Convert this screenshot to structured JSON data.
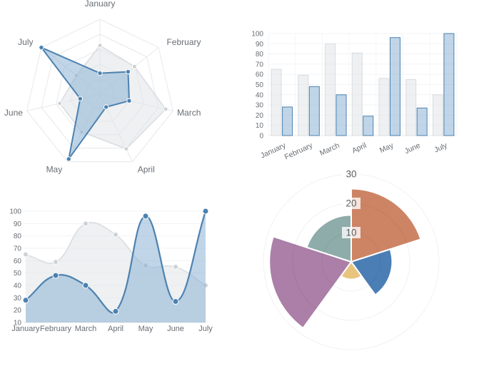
{
  "palette": {
    "blue_stroke": "#4d82b0",
    "blue_fill": "rgba(140,178,212,0.55)",
    "gray_stroke": "#d9dce0",
    "gray_fill": "rgba(224,227,231,0.55)",
    "gray_point": "#ced2d7",
    "grid_line": "#f2f3f5",
    "axis_line": "#e7e8eb",
    "tick_text": "#696e74",
    "polar_ring": "rgba(0,0,0,0.055)",
    "polar_tick_text": "#5a5e64",
    "label_backdrop": "rgba(255,255,255,0.78)",
    "point_border": "#ffffff",
    "polar_colors": [
      "#cd8465",
      "#4a7eb5",
      "#e8c47e",
      "#ab7fa7",
      "#8dacaa"
    ]
  },
  "chart_data": [
    {
      "id": "radar",
      "type": "radar",
      "categories": [
        "January",
        "February",
        "March",
        "April",
        "May",
        "June",
        "July"
      ],
      "series": [
        {
          "name": "gray",
          "values": [
            65,
            59,
            90,
            81,
            56,
            55,
            40
          ]
        },
        {
          "name": "blue",
          "values": [
            28,
            48,
            40,
            19,
            96,
            27,
            100
          ]
        }
      ],
      "rmax": 100,
      "ring_count": 5,
      "grid": true,
      "legend": "none"
    },
    {
      "id": "bar",
      "type": "bar",
      "categories": [
        "January",
        "February",
        "March",
        "April",
        "May",
        "June",
        "July"
      ],
      "series": [
        {
          "name": "gray",
          "values": [
            65,
            59,
            90,
            81,
            56,
            55,
            40
          ]
        },
        {
          "name": "blue",
          "values": [
            28,
            48,
            40,
            19,
            96,
            27,
            100
          ]
        }
      ],
      "ylim": [
        0,
        100
      ],
      "ytick_step": 10,
      "label_rotation": -25,
      "grid": true,
      "legend": "none"
    },
    {
      "id": "line",
      "type": "line",
      "categories": [
        "January",
        "February",
        "March",
        "April",
        "May",
        "June",
        "July"
      ],
      "series": [
        {
          "name": "gray",
          "values": [
            65,
            59,
            90,
            81,
            56,
            55,
            40
          ]
        },
        {
          "name": "blue",
          "values": [
            28,
            48,
            40,
            19,
            96,
            27,
            100
          ]
        }
      ],
      "ylim": [
        10,
        100
      ],
      "ytick_step": 10,
      "smooth": true,
      "fill": true,
      "grid": true,
      "legend": "none"
    },
    {
      "id": "polar",
      "type": "polarArea",
      "values": [
        25,
        14,
        6,
        28,
        16
      ],
      "segment_names": [
        "orange",
        "blue",
        "yellow",
        "purple",
        "teal"
      ],
      "rticks": [
        10,
        20,
        30
      ],
      "rmax": 30,
      "start_angle_deg": -90,
      "legend": "none"
    }
  ]
}
